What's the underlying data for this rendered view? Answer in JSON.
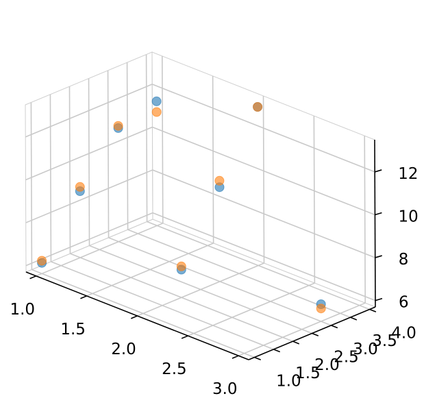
{
  "chart_data": {
    "type": "scatter",
    "projection": "3d",
    "title": "",
    "xlabel": "",
    "ylabel": "",
    "zlabel": "",
    "grid": true,
    "legend": "none",
    "xlim": [
      0.9,
      3.1
    ],
    "ylim": [
      0.85,
      4.15
    ],
    "zlim": [
      5.7,
      13.5
    ],
    "x_ticks": [
      1.0,
      1.5,
      2.0,
      2.5,
      3.0
    ],
    "x_tick_labels": [
      "1.0",
      "1.5",
      "2.0",
      "2.5",
      "3.0"
    ],
    "y_ticks": [
      1.0,
      1.5,
      2.0,
      2.5,
      3.0,
      3.5,
      4.0
    ],
    "y_tick_labels": [
      "1.0",
      "1.5",
      "2.0",
      "2.5",
      "3.0",
      "3.5",
      "4.0"
    ],
    "z_ticks": [
      6,
      8,
      10,
      12
    ],
    "z_tick_labels": [
      "6",
      "8",
      "10",
      "12"
    ],
    "series": [
      {
        "color": "#1f77b4",
        "points": [
          {
            "x": 1,
            "y": 1,
            "z": 6.2
          },
          {
            "x": 1,
            "y": 2,
            "z": 8.8
          },
          {
            "x": 1,
            "y": 3,
            "z": 11.0
          },
          {
            "x": 1,
            "y": 4,
            "z": 11.5
          },
          {
            "x": 2,
            "y": 2,
            "z": 7.0
          },
          {
            "x": 2,
            "y": 3,
            "z": 10.1
          },
          {
            "x": 2,
            "y": 4,
            "z": 13.1
          },
          {
            "x": 3,
            "y": 3,
            "z": 6.5
          }
        ]
      },
      {
        "color": "#ff7f0e",
        "points": [
          {
            "x": 1,
            "y": 1,
            "z": 6.3
          },
          {
            "x": 1,
            "y": 2,
            "z": 9.0
          },
          {
            "x": 1,
            "y": 3,
            "z": 11.1
          },
          {
            "x": 1,
            "y": 4,
            "z": 11.0
          },
          {
            "x": 2,
            "y": 2,
            "z": 7.15
          },
          {
            "x": 2,
            "y": 3,
            "z": 10.4
          },
          {
            "x": 2,
            "y": 4,
            "z": 13.1
          },
          {
            "x": 3,
            "y": 3,
            "z": 6.3
          }
        ]
      }
    ]
  }
}
